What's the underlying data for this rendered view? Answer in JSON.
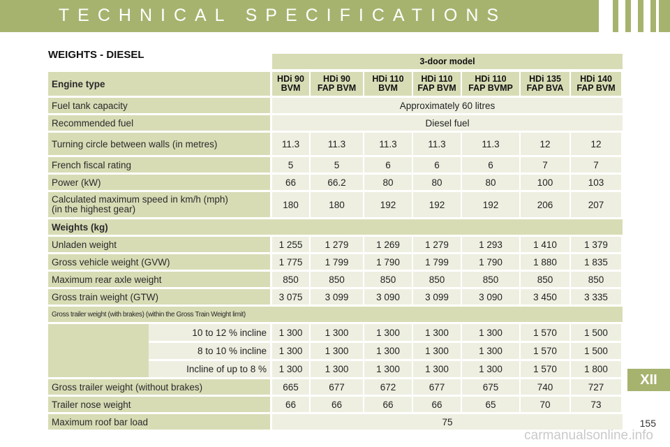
{
  "header": {
    "title": "TECHNICAL SPECIFICATIONS"
  },
  "section_title": "WEIGHTS - DIESEL",
  "model_heading": "3-door model",
  "engine_type_label": "Engine type",
  "engines": [
    "HDi 90\nBVM",
    "HDi 90\nFAP BVM",
    "HDi 110\nBVM",
    "HDi 110\nFAP BVM",
    "HDi 110\nFAP BVMP",
    "HDi 135\nFAP BVA",
    "HDi 140\nFAP BVM"
  ],
  "rows": [
    {
      "label": "Fuel tank capacity",
      "span": "Approximately 60 litres"
    },
    {
      "label": "Recommended fuel",
      "span": "Diesel fuel"
    },
    {
      "label": "Turning circle between walls (in metres)",
      "values": [
        "11.3",
        "11.3",
        "11.3",
        "11.3",
        "11.3",
        "12",
        "12"
      ]
    },
    {
      "label": "French fiscal rating",
      "values": [
        "5",
        "5",
        "6",
        "6",
        "6",
        "7",
        "7"
      ]
    },
    {
      "label": "Power (kW)",
      "values": [
        "66",
        "66.2",
        "80",
        "80",
        "80",
        "100",
        "103"
      ]
    },
    {
      "label": "Calculated maximum speed in km/h (mph)\n(in the highest gear)",
      "values": [
        "180",
        "180",
        "192",
        "192",
        "192",
        "206",
        "207"
      ]
    },
    {
      "label": "Weights (kg)",
      "section": true
    },
    {
      "label": "Unladen weight",
      "values": [
        "1 255",
        "1 279",
        "1 269",
        "1 279",
        "1 293",
        "1 410",
        "1 379"
      ]
    },
    {
      "label": "Gross vehicle weight (GVW)",
      "values": [
        "1 775",
        "1 799",
        "1 790",
        "1 799",
        "1 790",
        "1 880",
        "1 835"
      ]
    },
    {
      "label": "Maximum rear axle weight",
      "values": [
        "850",
        "850",
        "850",
        "850",
        "850",
        "850",
        "850"
      ]
    },
    {
      "label": "Gross train weight (GTW)",
      "values": [
        "3 075",
        "3 099",
        "3 090",
        "3 099",
        "3 090",
        "3 450",
        "3 335"
      ]
    },
    {
      "label": "Gross trailer weight (with brakes) (within the Gross Train Weight limit)",
      "section": true,
      "small": true
    },
    {
      "label": "10 to 12 % incline",
      "sub": true,
      "values": [
        "1 300",
        "1 300",
        "1 300",
        "1 300",
        "1 300",
        "1 570",
        "1 500"
      ]
    },
    {
      "label": "8 to 10 % incline",
      "sub": true,
      "values": [
        "1 300",
        "1 300",
        "1 300",
        "1 300",
        "1 300",
        "1 570",
        "1 500"
      ]
    },
    {
      "label": "Incline of up to 8 %",
      "sub": true,
      "values": [
        "1 300",
        "1 300",
        "1 300",
        "1 300",
        "1 300",
        "1 570",
        "1 800"
      ]
    },
    {
      "label": "Gross trailer weight (without brakes)",
      "values": [
        "665",
        "677",
        "672",
        "677",
        "675",
        "740",
        "727"
      ]
    },
    {
      "label": "Trailer nose weight",
      "values": [
        "66",
        "66",
        "66",
        "66",
        "65",
        "70",
        "73"
      ]
    },
    {
      "label": "Maximum roof bar load",
      "span": "75"
    }
  ],
  "chapter_tab": "XII",
  "page_number": "155",
  "watermark": "carmanualsonline.info"
}
